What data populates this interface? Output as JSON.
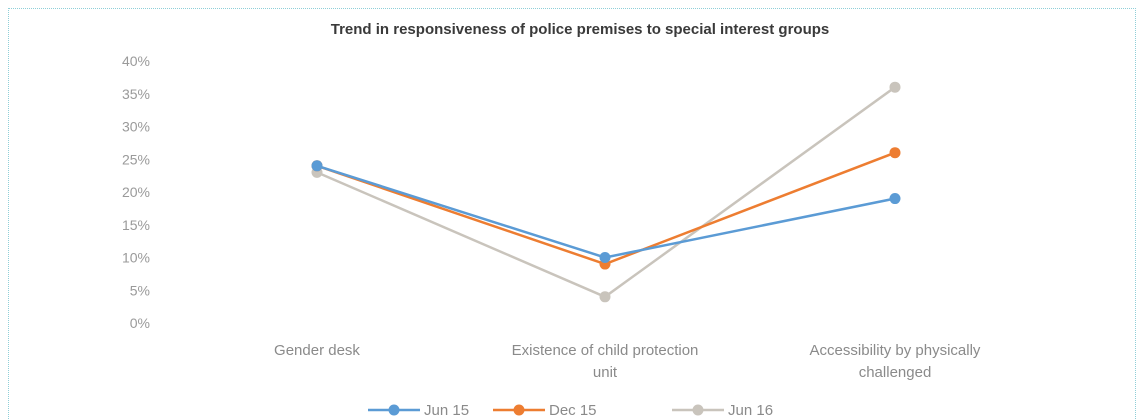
{
  "chart_data": {
    "type": "line",
    "title": "Trend in responsiveness of police premises to special interest groups",
    "categories": [
      [
        "Gender desk"
      ],
      [
        "Existence of child protection",
        "unit"
      ],
      [
        "Accessibility by physically",
        "challenged"
      ]
    ],
    "y_ticks": [
      "0%",
      "5%",
      "10%",
      "15%",
      "20%",
      "25%",
      "30%",
      "35%",
      "40%"
    ],
    "ylim": [
      0,
      40
    ],
    "series": [
      {
        "name": "Jun 15",
        "color": "#5b9bd5",
        "values": [
          24,
          10,
          19
        ]
      },
      {
        "name": "Dec 15",
        "color": "#ed7d31",
        "values": [
          24,
          9,
          26
        ]
      },
      {
        "name": "Jun 16",
        "color": "#c9c4bc",
        "values": [
          23,
          4,
          36
        ]
      }
    ],
    "legend_position": "bottom",
    "grid": false
  }
}
